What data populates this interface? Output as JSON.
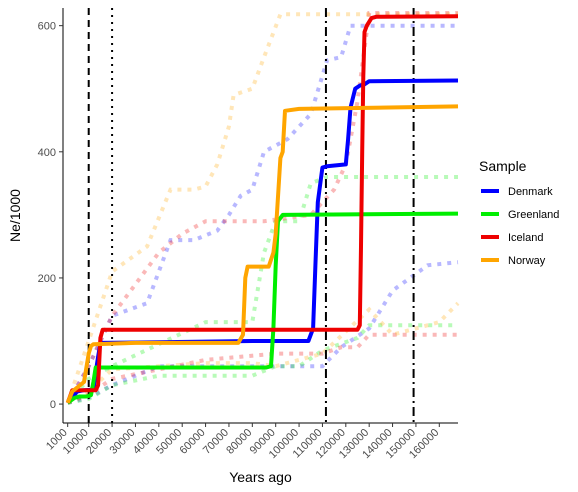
{
  "chart_data": {
    "type": "line",
    "xlabel": "Years ago",
    "ylabel": "Ne/1000",
    "xlim": [
      -1000,
      168000
    ],
    "ylim": [
      -30,
      628
    ],
    "x_ticks": [
      1000,
      10000,
      20000,
      30000,
      40000,
      50000,
      60000,
      70000,
      80000,
      90000,
      100000,
      110000,
      120000,
      130000,
      140000,
      150000,
      160000
    ],
    "y_ticks": [
      0,
      200,
      400,
      600
    ],
    "grid": false,
    "legend": {
      "title": "Sample",
      "placement": "right"
    },
    "vlines": [
      {
        "x": 10000,
        "style": "dashed"
      },
      {
        "x": 20000,
        "style": "dotted"
      },
      {
        "x": 111500,
        "style": "dashdot"
      },
      {
        "x": 149000,
        "style": "dashdot"
      }
    ],
    "series": [
      {
        "name": "Denmark",
        "color": "#0000ff",
        "x": [
          1000,
          3000,
          5000,
          8000,
          12000,
          13000,
          14000,
          15000,
          40000,
          80000,
          104000,
          106000,
          107000,
          108000,
          110000,
          112000,
          120000,
          121000,
          122000,
          124000,
          126000,
          128000,
          130000,
          168000
        ],
        "y": [
          2,
          10,
          20,
          22,
          23,
          50,
          75,
          97,
          98,
          100,
          100,
          120,
          220,
          320,
          375,
          377,
          380,
          420,
          470,
          500,
          505,
          507,
          512,
          513
        ]
      },
      {
        "name": "Greenland",
        "color": "#00ee00",
        "x": [
          1000,
          4000,
          6000,
          9000,
          11000,
          12000,
          13000,
          30000,
          60000,
          86000,
          88000,
          89000,
          90000,
          91000,
          93000,
          168000
        ],
        "y": [
          2,
          10,
          12,
          12,
          14,
          35,
          58,
          58,
          58,
          58,
          60,
          120,
          220,
          290,
          300,
          302
        ]
      },
      {
        "name": "Iceland",
        "color": "#ee0000",
        "x": [
          1000,
          3000,
          6000,
          10000,
          13000,
          14000,
          15000,
          16000,
          60000,
          120000,
          125000,
          126000,
          126500,
          127000,
          127500,
          128000,
          129000,
          131000,
          133000,
          168000
        ],
        "y": [
          2,
          22,
          22,
          22,
          22,
          30,
          105,
          118,
          118,
          118,
          118,
          125,
          250,
          400,
          520,
          590,
          600,
          612,
          614,
          615
        ]
      },
      {
        "name": "Norway",
        "color": "#ffa500",
        "x": [
          1000,
          3000,
          8000,
          10000,
          11000,
          12000,
          30000,
          60000,
          74000,
          76000,
          77000,
          78000,
          80000,
          87000,
          89000,
          90000,
          92000,
          93000,
          94000,
          100000,
          168000
        ],
        "y": [
          2,
          20,
          35,
          80,
          92,
          95,
          97,
          97,
          97,
          110,
          200,
          218,
          218,
          218,
          240,
          270,
          390,
          400,
          465,
          468,
          472
        ]
      }
    ],
    "confidence_bands": [
      {
        "series": "Denmark",
        "color": "#0000ff",
        "upper": {
          "x": [
            1000,
            10000,
            20000,
            35000,
            45000,
            55000,
            65000,
            70000,
            75000,
            80000,
            85000,
            95000,
            105000,
            112000,
            118000,
            122000,
            130000,
            168000
          ],
          "y": [
            2,
            60,
            140,
            160,
            260,
            260,
            275,
            300,
            330,
            340,
            400,
            420,
            460,
            545,
            550,
            600,
            600,
            600
          ]
        },
        "lower": {
          "x": [
            1000,
            10000,
            20000,
            40000,
            70000,
            80000,
            110000,
            118000,
            130000,
            140000,
            155000,
            168000
          ],
          "y": [
            2,
            10,
            30,
            60,
            60,
            60,
            60,
            90,
            120,
            180,
            220,
            225
          ]
        }
      },
      {
        "series": "Greenland",
        "color": "#00ee00",
        "upper": {
          "x": [
            1000,
            10000,
            20000,
            60000,
            80000,
            85000,
            90000,
            100000,
            105000,
            112000,
            168000
          ],
          "y": [
            2,
            40,
            60,
            130,
            130,
            240,
            290,
            290,
            350,
            360,
            360
          ]
        },
        "lower": {
          "x": [
            1000,
            10000,
            20000,
            40000,
            80000,
            90000,
            100000,
            110000,
            125000,
            130000,
            168000
          ],
          "y": [
            2,
            8,
            30,
            45,
            45,
            60,
            60,
            85,
            105,
            125,
            125
          ]
        }
      },
      {
        "series": "Iceland",
        "color": "#ee0000",
        "upper": {
          "x": [
            1000,
            10000,
            20000,
            40000,
            50000,
            60000,
            85000,
            105000,
            115000,
            120000,
            125000,
            130000,
            168000
          ],
          "y": [
            2,
            60,
            140,
            240,
            270,
            290,
            290,
            300,
            340,
            380,
            480,
            620,
            620
          ]
        },
        "lower": {
          "x": [
            1000,
            10000,
            20000,
            60000,
            90000,
            110000,
            118000,
            125000,
            130000,
            168000
          ],
          "y": [
            2,
            15,
            40,
            70,
            80,
            80,
            90,
            90,
            110,
            110
          ]
        }
      },
      {
        "series": "Norway",
        "color": "#ffa500",
        "upper": {
          "x": [
            1000,
            10000,
            20000,
            35000,
            45000,
            55000,
            60000,
            65000,
            70000,
            72000,
            80000,
            85000,
            92000,
            112000,
            130000,
            168000
          ],
          "y": [
            2,
            100,
            210,
            250,
            340,
            340,
            345,
            380,
            440,
            490,
            500,
            550,
            618,
            618,
            618,
            618
          ]
        },
        "lower": {
          "x": [
            1000,
            10000,
            20000,
            60000,
            80000,
            90000,
            110000,
            130000,
            140000,
            160000,
            168000
          ],
          "y": [
            2,
            20,
            55,
            65,
            65,
            60,
            80,
            150,
            110,
            130,
            160
          ]
        }
      }
    ]
  }
}
